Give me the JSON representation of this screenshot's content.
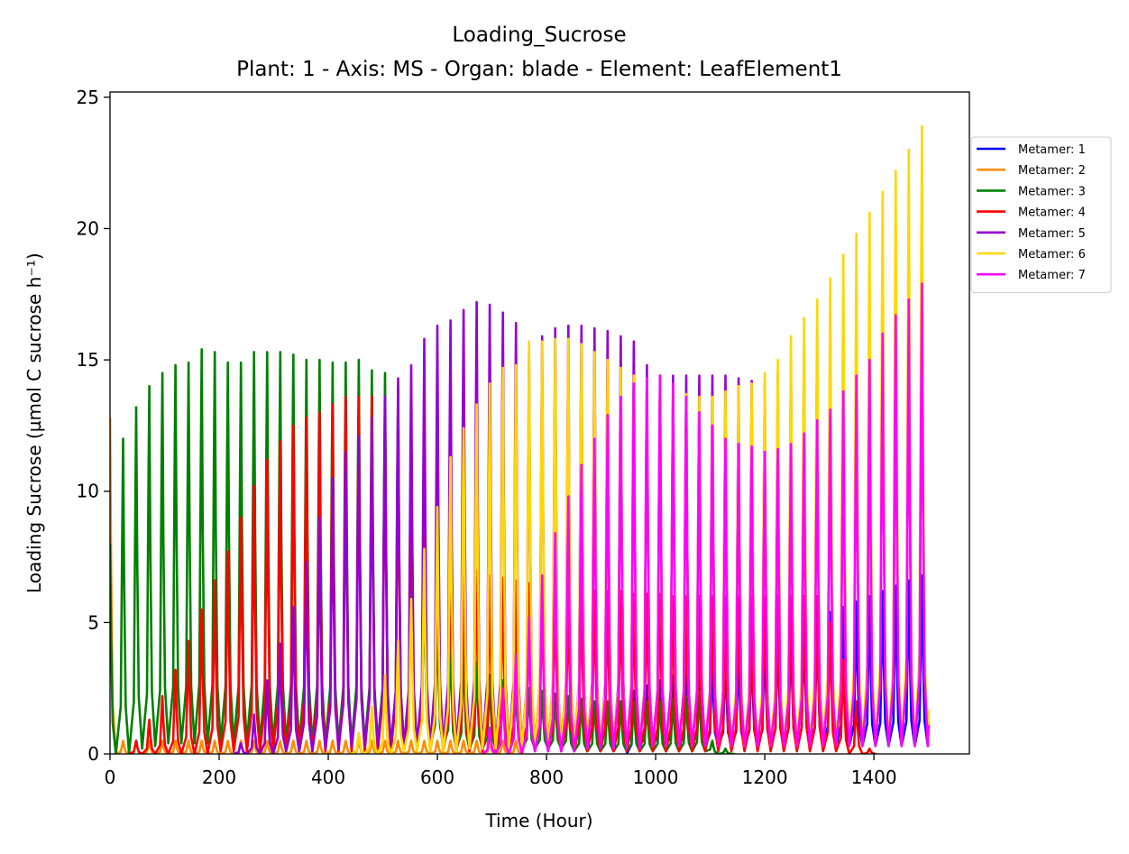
{
  "chart_data": {
    "type": "line",
    "title": "Loading_Sucrose",
    "subtitle": "Plant: 1 - Axis: MS - Organ: blade - Element: LeafElement1",
    "xlabel": "Time (Hour)",
    "ylabel": "Loading Sucrose (µmol C sucrose h⁻¹)",
    "xlim": [
      0,
      1575
    ],
    "ylim": [
      0,
      25.2
    ],
    "xticks": [
      0,
      200,
      400,
      600,
      800,
      1000,
      1200,
      1400
    ],
    "yticks": [
      0,
      5,
      10,
      15,
      20,
      25
    ],
    "grid": false,
    "legend_position": "outside-right",
    "cycle_period_hours": 24,
    "series": [
      {
        "name": "Metamer: 1",
        "color": "#0000ff",
        "peak_times": [
          960,
          984,
          1008,
          1032,
          1056,
          1080,
          1104,
          1128,
          1152,
          1176,
          1200,
          1224,
          1248,
          1272,
          1296,
          1320,
          1344,
          1368,
          1392,
          1416,
          1440,
          1464,
          1488
        ],
        "peak_values": [
          2.4,
          2.6,
          2.8,
          3.0,
          3.2,
          3.4,
          3.6,
          3.8,
          4.0,
          4.2,
          4.4,
          4.6,
          4.8,
          5.0,
          5.2,
          5.4,
          5.6,
          5.8,
          6.0,
          6.2,
          6.4,
          6.6,
          6.8
        ],
        "trough_values": [
          0.3,
          0.3,
          0.3,
          0.3,
          0.3,
          0.3,
          0.3,
          0.3,
          0.3,
          0.3,
          0.3,
          0.3,
          0.3,
          0.3,
          0.3,
          0.3,
          0.3,
          0.3,
          0.3,
          0.3,
          0.3,
          0.3,
          0.3
        ],
        "end": [
          1500,
          1.2
        ]
      },
      {
        "name": "Metamer: 2",
        "color": "#ff8c00",
        "peak_times": [
          0,
          24,
          48,
          72,
          96,
          120,
          144,
          168,
          192,
          216,
          240,
          264,
          288,
          312,
          336,
          360,
          384,
          408,
          432,
          456,
          480,
          504,
          528,
          552,
          576,
          600,
          624,
          648,
          672,
          696,
          720,
          744
        ],
        "peak_values": [
          12.8,
          0.5,
          0.5,
          0.5,
          0.5,
          0.5,
          0.5,
          0.5,
          0.5,
          0.5,
          0.5,
          0.5,
          0.5,
          0.5,
          0.5,
          0.5,
          0.5,
          0.5,
          0.5,
          0.5,
          0.5,
          0.5,
          0.5,
          0.5,
          0.5,
          0.5,
          0.5,
          0.5,
          0.5,
          0.5,
          0.5,
          0.5
        ],
        "trough_values": [
          0.0,
          0.0,
          0.0,
          0.0,
          0.0,
          0.0,
          0.0,
          0.0,
          0.0,
          0.0,
          0.0,
          0.0,
          0.0,
          0.0,
          0.0,
          0.0,
          0.0,
          0.0,
          0.0,
          0.0,
          0.0,
          0.0,
          0.0,
          0.0,
          0.0,
          0.0,
          0.0,
          0.0,
          0.0,
          0.0,
          0.0,
          0.0
        ],
        "end": [
          750,
          0.0
        ]
      },
      {
        "name": "Metamer: 3",
        "color": "#008000",
        "peak_times": [
          0,
          24,
          48,
          72,
          96,
          120,
          144,
          168,
          192,
          216,
          240,
          264,
          288,
          312,
          336,
          360,
          384,
          408,
          432,
          456,
          480,
          504,
          528,
          552,
          576,
          600,
          624,
          648,
          672,
          696,
          720,
          744,
          768,
          792,
          816,
          840,
          864,
          888,
          912,
          936,
          960,
          984,
          1008,
          1032,
          1056,
          1080,
          1104,
          1128
        ],
        "peak_values": [
          8.0,
          12.0,
          13.2,
          14.0,
          14.5,
          14.8,
          14.9,
          15.4,
          15.3,
          14.9,
          14.9,
          15.3,
          15.3,
          15.3,
          15.2,
          15.0,
          15.0,
          14.9,
          14.9,
          15.0,
          14.6,
          14.5,
          14.0,
          10.0,
          7.0,
          5.5,
          4.5,
          4.0,
          3.5,
          3.0,
          2.8,
          2.6,
          2.5,
          2.4,
          2.3,
          2.2,
          2.1,
          2.0,
          2.0,
          2.0,
          2.0,
          2.0,
          2.0,
          2.1,
          2.2,
          2.4,
          0.5,
          0.2
        ],
        "trough_values": [
          0.0,
          0.0,
          0.2,
          0.3,
          0.4,
          0.4,
          0.4,
          0.4,
          0.4,
          0.4,
          0.4,
          0.4,
          0.4,
          0.4,
          0.4,
          0.4,
          0.4,
          0.4,
          0.4,
          0.4,
          0.4,
          0.3,
          0.3,
          0.3,
          0.3,
          0.3,
          0.2,
          0.2,
          0.2,
          0.2,
          0.2,
          0.2,
          0.2,
          0.2,
          0.2,
          0.1,
          0.1,
          0.1,
          0.1,
          0.1,
          0.1,
          0.1,
          0.1,
          0.1,
          0.1,
          0.1,
          0.0,
          0.0
        ],
        "end": [
          1145,
          0.0
        ]
      },
      {
        "name": "Metamer: 4",
        "color": "#ff0000",
        "peak_times": [
          48,
          72,
          96,
          120,
          144,
          168,
          192,
          216,
          240,
          264,
          288,
          312,
          336,
          360,
          384,
          408,
          432,
          456,
          480,
          504,
          528,
          552,
          576,
          600,
          624,
          648,
          672,
          696,
          720,
          744,
          768,
          792,
          816,
          840,
          864,
          888,
          912,
          936,
          960,
          984,
          1008,
          1032,
          1056,
          1080,
          1104,
          1128,
          1152,
          1176,
          1200,
          1224,
          1248,
          1272,
          1296,
          1320,
          1344,
          1368,
          1392
        ],
        "peak_values": [
          0.5,
          1.3,
          2.2,
          3.2,
          4.3,
          5.5,
          6.6,
          7.7,
          9.0,
          10.2,
          11.2,
          11.9,
          12.5,
          12.8,
          13.0,
          13.3,
          13.6,
          13.6,
          13.6,
          13.2,
          12.5,
          11.0,
          9.5,
          8.5,
          7.8,
          7.3,
          7.0,
          6.8,
          6.7,
          6.6,
          6.5,
          6.5,
          6.4,
          6.3,
          6.3,
          6.2,
          6.2,
          6.2,
          6.1,
          6.1,
          6.1,
          6.0,
          6.0,
          6.0,
          6.0,
          6.0,
          6.0,
          6.0,
          6.0,
          6.0,
          6.0,
          6.0,
          6.0,
          5.0,
          3.6,
          2.0,
          0.2
        ],
        "trough_values": [
          0.0,
          0.0,
          0.0,
          0.0,
          0.0,
          0.0,
          0.1,
          0.1,
          0.1,
          0.1,
          0.1,
          0.1,
          0.1,
          0.1,
          0.1,
          0.1,
          0.1,
          0.1,
          0.1,
          0.1,
          0.1,
          0.1,
          0.1,
          0.1,
          0.1,
          0.1,
          0.1,
          0.1,
          0.1,
          0.1,
          0.1,
          0.1,
          0.1,
          0.1,
          0.1,
          0.1,
          0.1,
          0.1,
          0.1,
          0.1,
          0.1,
          0.1,
          0.1,
          0.1,
          0.1,
          0.1,
          0.1,
          0.1,
          0.1,
          0.1,
          0.1,
          0.1,
          0.1,
          0.1,
          0.0,
          0.0,
          0.0
        ],
        "end": [
          1400,
          0.0
        ]
      },
      {
        "name": "Metamer: 5",
        "color": "#9400d3",
        "peak_times": [
          240,
          264,
          288,
          312,
          336,
          360,
          384,
          408,
          432,
          456,
          480,
          504,
          528,
          552,
          576,
          600,
          624,
          648,
          672,
          696,
          720,
          744,
          768,
          792,
          816,
          840,
          864,
          888,
          912,
          936,
          960,
          984,
          1008,
          1032,
          1056,
          1080,
          1104,
          1128,
          1152,
          1176,
          1200,
          1224,
          1248,
          1272,
          1296,
          1320,
          1344,
          1368,
          1392,
          1416,
          1440,
          1464,
          1488
        ],
        "peak_values": [
          0.4,
          1.5,
          2.8,
          4.2,
          5.6,
          7.3,
          9.0,
          10.5,
          11.5,
          12.1,
          12.8,
          13.6,
          14.3,
          14.8,
          15.8,
          16.3,
          16.5,
          16.9,
          17.2,
          17.1,
          16.8,
          16.4,
          15.3,
          15.9,
          16.2,
          16.3,
          16.3,
          16.2,
          16.1,
          15.9,
          15.7,
          14.8,
          14.4,
          14.4,
          14.4,
          14.4,
          14.4,
          14.4,
          14.3,
          14.2,
          14.1,
          14.5,
          15.0,
          15.5,
          16.0,
          16.3,
          16.5,
          16.6,
          16.7,
          16.8,
          17.0,
          17.2,
          17.9
        ],
        "trough_values": [
          0.0,
          0.0,
          0.0,
          0.1,
          0.1,
          0.1,
          0.2,
          0.2,
          0.3,
          0.3,
          0.3,
          0.3,
          0.3,
          0.3,
          0.3,
          0.3,
          0.3,
          0.3,
          0.3,
          0.3,
          0.3,
          0.3,
          0.3,
          0.3,
          0.3,
          0.3,
          0.3,
          0.3,
          0.3,
          0.3,
          0.3,
          0.3,
          0.3,
          0.3,
          0.3,
          0.3,
          0.3,
          0.3,
          0.3,
          0.3,
          0.3,
          0.3,
          0.3,
          0.3,
          0.3,
          0.3,
          0.3,
          0.3,
          0.3,
          0.3,
          0.3,
          0.3,
          0.3
        ],
        "end": [
          1500,
          1.1
        ]
      },
      {
        "name": "Metamer: 6",
        "color": "#ffd700",
        "peak_times": [
          456,
          480,
          504,
          528,
          552,
          576,
          600,
          624,
          648,
          672,
          696,
          720,
          744,
          768,
          792,
          816,
          840,
          864,
          888,
          912,
          936,
          960,
          984,
          1008,
          1032,
          1056,
          1080,
          1104,
          1128,
          1152,
          1176,
          1200,
          1224,
          1248,
          1272,
          1296,
          1320,
          1344,
          1368,
          1392,
          1416,
          1440,
          1464,
          1488
        ],
        "peak_values": [
          0.8,
          1.8,
          3.0,
          4.3,
          5.9,
          7.8,
          9.4,
          11.3,
          12.4,
          13.3,
          14.1,
          14.7,
          14.8,
          15.7,
          15.7,
          15.8,
          15.8,
          15.6,
          15.3,
          15.0,
          14.7,
          14.4,
          14.3,
          14.1,
          13.9,
          13.7,
          13.6,
          13.6,
          13.8,
          14.0,
          14.1,
          14.5,
          15.0,
          15.9,
          16.6,
          17.3,
          18.1,
          19.0,
          19.8,
          20.6,
          21.4,
          22.2,
          23.0,
          23.9
        ],
        "trough_values": [
          0.0,
          0.0,
          0.0,
          0.1,
          0.1,
          0.1,
          0.1,
          0.1,
          0.2,
          0.2,
          0.2,
          0.2,
          0.2,
          0.3,
          0.3,
          0.3,
          0.3,
          0.3,
          0.3,
          0.3,
          0.3,
          0.3,
          0.3,
          0.3,
          0.3,
          0.3,
          0.3,
          0.3,
          0.3,
          0.3,
          0.3,
          0.3,
          0.3,
          0.3,
          0.3,
          0.3,
          0.3,
          0.3,
          0.3,
          0.3,
          0.3,
          0.3,
          0.3,
          0.3
        ],
        "end": [
          1500,
          1.7
        ]
      },
      {
        "name": "Metamer: 7",
        "color": "#ff00ff",
        "peak_times": [
          696,
          720,
          744,
          768,
          792,
          816,
          840,
          864,
          888,
          912,
          936,
          960,
          984,
          1008,
          1032,
          1056,
          1080,
          1104,
          1128,
          1152,
          1176,
          1200,
          1224,
          1248,
          1272,
          1296,
          1320,
          1344,
          1368,
          1392,
          1416,
          1440,
          1464,
          1488
        ],
        "peak_values": [
          1.0,
          2.5,
          3.8,
          5.2,
          6.8,
          8.4,
          9.8,
          11.0,
          12.0,
          12.9,
          13.6,
          14.1,
          14.3,
          14.4,
          14.1,
          13.6,
          13.0,
          12.5,
          12.0,
          11.8,
          11.7,
          11.5,
          11.6,
          11.8,
          12.2,
          12.7,
          13.1,
          13.8,
          14.4,
          15.0,
          16.0,
          16.7,
          17.3,
          17.9
        ],
        "trough_values": [
          0.0,
          0.0,
          0.0,
          0.1,
          0.1,
          0.1,
          0.1,
          0.2,
          0.2,
          0.2,
          0.2,
          0.2,
          0.3,
          0.3,
          0.3,
          0.3,
          0.3,
          0.3,
          0.3,
          0.3,
          0.3,
          0.3,
          0.3,
          0.3,
          0.3,
          0.3,
          0.3,
          0.3,
          0.3,
          0.3,
          0.3,
          0.3,
          0.3,
          0.3
        ],
        "end": [
          1500,
          1.1
        ]
      }
    ]
  }
}
